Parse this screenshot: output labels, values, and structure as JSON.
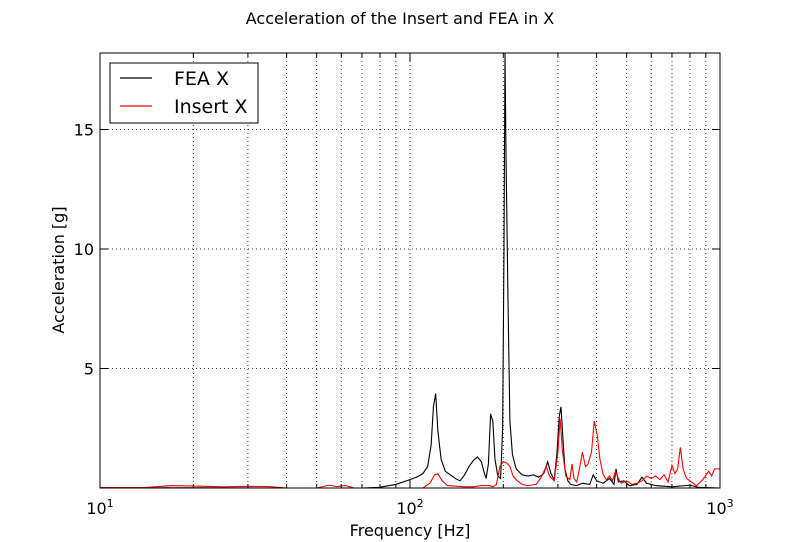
{
  "chart_data": {
    "type": "line",
    "title": "Acceleration of the Insert and FEA in X",
    "xlabel": "Frequency [Hz]",
    "ylabel": "Acceleration [g]",
    "xscale": "log",
    "xlim": [
      10,
      1000
    ],
    "ylim": [
      0,
      18.2
    ],
    "grid": true,
    "legend_position": "top-left",
    "x_ticks": [
      {
        "value": 10,
        "base": "10",
        "exp": "1"
      },
      {
        "value": 100,
        "base": "10",
        "exp": "2"
      },
      {
        "value": 1000,
        "base": "10",
        "exp": "3"
      }
    ],
    "y_ticks": [
      {
        "value": 5,
        "label": "5"
      },
      {
        "value": 10,
        "label": "10"
      },
      {
        "value": 15,
        "label": "15"
      }
    ],
    "series": [
      {
        "name": "FEA X",
        "color": "#000000",
        "points": [
          [
            10,
            0.01
          ],
          [
            20,
            0.01
          ],
          [
            40,
            0.0
          ],
          [
            70,
            0.0
          ],
          [
            80,
            0.03
          ],
          [
            90,
            0.15
          ],
          [
            100,
            0.35
          ],
          [
            105,
            0.45
          ],
          [
            110,
            0.6
          ],
          [
            114,
            0.9
          ],
          [
            117,
            1.8
          ],
          [
            119,
            3.4
          ],
          [
            121,
            3.95
          ],
          [
            123,
            2.4
          ],
          [
            126,
            1.2
          ],
          [
            130,
            0.7
          ],
          [
            140,
            0.4
          ],
          [
            145,
            0.3
          ],
          [
            150,
            0.55
          ],
          [
            155,
            0.9
          ],
          [
            160,
            1.15
          ],
          [
            165,
            1.3
          ],
          [
            170,
            1.1
          ],
          [
            173,
            0.7
          ],
          [
            176,
            0.4
          ],
          [
            179,
            1.0
          ],
          [
            182,
            3.1
          ],
          [
            185,
            2.8
          ],
          [
            188,
            1.2
          ],
          [
            192,
            0.5
          ],
          [
            196,
            0.4
          ],
          [
            199,
            2.5
          ],
          [
            201,
            10.0
          ],
          [
            202.5,
            18.2
          ],
          [
            204,
            14.0
          ],
          [
            207,
            8.0
          ],
          [
            210,
            2.8
          ],
          [
            214,
            1.4
          ],
          [
            220,
            0.8
          ],
          [
            230,
            0.55
          ],
          [
            240,
            0.5
          ],
          [
            250,
            0.55
          ],
          [
            260,
            0.45
          ],
          [
            270,
            0.6
          ],
          [
            278,
            1.1
          ],
          [
            285,
            0.6
          ],
          [
            292,
            0.35
          ],
          [
            298,
            1.5
          ],
          [
            303,
            3.0
          ],
          [
            307,
            3.4
          ],
          [
            311,
            2.2
          ],
          [
            316,
            0.8
          ],
          [
            323,
            0.3
          ],
          [
            330,
            0.15
          ],
          [
            345,
            0.1
          ],
          [
            360,
            0.2
          ],
          [
            380,
            0.15
          ],
          [
            390,
            0.55
          ],
          [
            400,
            0.3
          ],
          [
            420,
            0.2
          ],
          [
            440,
            0.4
          ],
          [
            455,
            0.15
          ],
          [
            462,
            0.8
          ],
          [
            470,
            0.25
          ],
          [
            490,
            0.3
          ],
          [
            510,
            0.1
          ],
          [
            540,
            0.15
          ],
          [
            560,
            0.45
          ],
          [
            580,
            0.2
          ],
          [
            620,
            0.1
          ],
          [
            700,
            0.05
          ],
          [
            800,
            0.12
          ],
          [
            850,
            0.03
          ],
          [
            1000,
            0.0
          ]
        ]
      },
      {
        "name": "Insert X",
        "color": "#ff0000",
        "points": [
          [
            10,
            0.02
          ],
          [
            14,
            0.02
          ],
          [
            17,
            0.1
          ],
          [
            20,
            0.08
          ],
          [
            25,
            0.05
          ],
          [
            30,
            0.07
          ],
          [
            35,
            0.06
          ],
          [
            40,
            0.0
          ],
          [
            50,
            0.0
          ],
          [
            55,
            0.12
          ],
          [
            58,
            0.06
          ],
          [
            62,
            0.1
          ],
          [
            66,
            0.0
          ],
          [
            90,
            0.0
          ],
          [
            110,
            0.0
          ],
          [
            116,
            0.2
          ],
          [
            120,
            0.55
          ],
          [
            123,
            0.6
          ],
          [
            127,
            0.3
          ],
          [
            132,
            0.1
          ],
          [
            150,
            0.05
          ],
          [
            160,
            0.05
          ],
          [
            170,
            0.1
          ],
          [
            180,
            0.1
          ],
          [
            185,
            0.05
          ],
          [
            190,
            0.15
          ],
          [
            195,
            0.9
          ],
          [
            200,
            1.1
          ],
          [
            205,
            1.05
          ],
          [
            210,
            0.9
          ],
          [
            215,
            0.5
          ],
          [
            222,
            0.3
          ],
          [
            230,
            0.15
          ],
          [
            240,
            0.1
          ],
          [
            255,
            0.15
          ],
          [
            265,
            0.45
          ],
          [
            275,
            0.9
          ],
          [
            282,
            0.5
          ],
          [
            292,
            0.3
          ],
          [
            300,
            1.5
          ],
          [
            305,
            2.9
          ],
          [
            310,
            1.6
          ],
          [
            318,
            0.5
          ],
          [
            328,
            0.35
          ],
          [
            333,
            1.0
          ],
          [
            338,
            0.4
          ],
          [
            345,
            0.25
          ],
          [
            352,
            0.8
          ],
          [
            360,
            1.5
          ],
          [
            368,
            0.9
          ],
          [
            375,
            1.0
          ],
          [
            385,
            1.5
          ],
          [
            393,
            2.8
          ],
          [
            402,
            2.2
          ],
          [
            410,
            1.2
          ],
          [
            420,
            0.55
          ],
          [
            430,
            0.35
          ],
          [
            440,
            0.5
          ],
          [
            450,
            0.3
          ],
          [
            460,
            0.7
          ],
          [
            470,
            0.4
          ],
          [
            480,
            0.2
          ],
          [
            500,
            0.3
          ],
          [
            520,
            0.15
          ],
          [
            540,
            0.2
          ],
          [
            560,
            0.3
          ],
          [
            580,
            0.5
          ],
          [
            600,
            0.4
          ],
          [
            620,
            0.5
          ],
          [
            640,
            0.35
          ],
          [
            660,
            0.55
          ],
          [
            680,
            0.25
          ],
          [
            700,
            0.95
          ],
          [
            715,
            0.6
          ],
          [
            730,
            0.8
          ],
          [
            745,
            1.7
          ],
          [
            760,
            0.8
          ],
          [
            780,
            0.4
          ],
          [
            800,
            0.3
          ],
          [
            840,
            0.1
          ],
          [
            880,
            0.35
          ],
          [
            920,
            0.7
          ],
          [
            940,
            0.5
          ],
          [
            960,
            0.8
          ],
          [
            1000,
            0.8
          ]
        ]
      }
    ]
  }
}
